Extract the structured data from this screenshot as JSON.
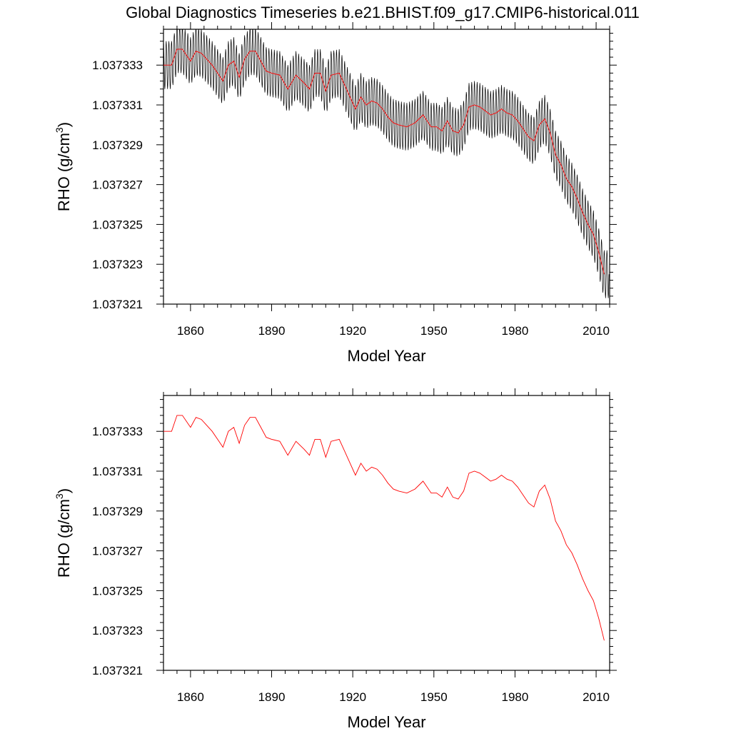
{
  "figure": {
    "title": "Global Diagnostics Timeseries b.e21.BHIST.f09_g17.CMIP6-historical.011"
  },
  "chart_data": [
    {
      "type": "line",
      "title": "Global Diagnostics Timeseries b.e21.BHIST.f09_g17.CMIP6-historical.011",
      "xlabel": "Model Year",
      "ylabel": "RHO (g/cm3)",
      "ylabel_main": "RHO (g/cm",
      "ylabel_sup": "3",
      "ylabel_close": ")",
      "xlim": [
        1850,
        2015
      ],
      "ylim": [
        1.037321,
        1.0373348
      ],
      "xticks": [
        1860,
        1890,
        1920,
        1950,
        1980,
        2010
      ],
      "yticks": [
        1.037321,
        1.037323,
        1.037325,
        1.037327,
        1.037329,
        1.037331,
        1.037333
      ],
      "ytick_labels": [
        "1.037321",
        "1.037323",
        "1.037325",
        "1.037327",
        "1.037329",
        "1.037331",
        "1.037333"
      ],
      "grid": false,
      "series": [
        {
          "role": "monthly",
          "color": "#000000",
          "seasonal_amplitude": 1.2e-06,
          "x": "same as annual series, sampled monthly"
        },
        {
          "role": "annual",
          "color": "#ff0000",
          "x": [
            1850,
            1853,
            1855,
            1857,
            1860,
            1862,
            1864,
            1866,
            1868,
            1870,
            1872,
            1874,
            1876,
            1878,
            1880,
            1882,
            1884,
            1886,
            1888,
            1890,
            1893,
            1896,
            1899,
            1902,
            1904,
            1906,
            1908,
            1910,
            1912,
            1915,
            1917,
            1919,
            1921,
            1923,
            1925,
            1927,
            1929,
            1931,
            1933,
            1935,
            1937,
            1940,
            1943,
            1946,
            1949,
            1951,
            1953,
            1955,
            1957,
            1959,
            1961,
            1963,
            1965,
            1967,
            1969,
            1971,
            1973,
            1975,
            1977,
            1979,
            1981,
            1983,
            1985,
            1987,
            1989,
            1991,
            1993,
            1995,
            1997,
            1999,
            2001,
            2003,
            2005,
            2007,
            2009,
            2011,
            2013
          ],
          "y": [
            1.037333,
            1.037333,
            1.0373338,
            1.0373338,
            1.0373332,
            1.0373337,
            1.0373336,
            1.0373333,
            1.037333,
            1.0373326,
            1.0373322,
            1.037333,
            1.0373332,
            1.0373324,
            1.0373333,
            1.0373337,
            1.0373337,
            1.0373332,
            1.0373327,
            1.0373326,
            1.0373325,
            1.0373318,
            1.0373325,
            1.0373321,
            1.0373318,
            1.0373326,
            1.0373326,
            1.0373317,
            1.0373325,
            1.0373326,
            1.037332,
            1.0373314,
            1.0373308,
            1.0373314,
            1.037331,
            1.0373312,
            1.0373311,
            1.0373308,
            1.0373304,
            1.0373301,
            1.03733,
            1.0373299,
            1.0373301,
            1.0373305,
            1.0373299,
            1.0373299,
            1.0373297,
            1.0373302,
            1.0373297,
            1.0373296,
            1.03733,
            1.0373309,
            1.037331,
            1.0373309,
            1.0373307,
            1.0373305,
            1.0373306,
            1.0373308,
            1.0373306,
            1.0373305,
            1.0373302,
            1.0373298,
            1.0373294,
            1.0373292,
            1.03733,
            1.0373303,
            1.0373296,
            1.0373285,
            1.037328,
            1.0373273,
            1.0373269,
            1.0373263,
            1.0373256,
            1.037325,
            1.0373245,
            1.0373236,
            1.0373225
          ]
        }
      ]
    },
    {
      "type": "line",
      "title": "",
      "xlabel": "Model Year",
      "ylabel": "RHO (g/cm3)",
      "ylabel_main": "RHO (g/cm",
      "ylabel_sup": "3",
      "ylabel_close": ")",
      "xlim": [
        1850,
        2015
      ],
      "ylim": [
        1.037321,
        1.0373348
      ],
      "xticks": [
        1860,
        1890,
        1920,
        1950,
        1980,
        2010
      ],
      "yticks": [
        1.037321,
        1.037323,
        1.037325,
        1.037327,
        1.037329,
        1.037331,
        1.037333
      ],
      "ytick_labels": [
        "1.037321",
        "1.037323",
        "1.037325",
        "1.037327",
        "1.037329",
        "1.037331",
        "1.037333"
      ],
      "grid": false,
      "series": [
        {
          "role": "annual",
          "color": "#ff0000",
          "x": [
            1850,
            1853,
            1855,
            1857,
            1860,
            1862,
            1864,
            1866,
            1868,
            1870,
            1872,
            1874,
            1876,
            1878,
            1880,
            1882,
            1884,
            1886,
            1888,
            1890,
            1893,
            1896,
            1899,
            1902,
            1904,
            1906,
            1908,
            1910,
            1912,
            1915,
            1917,
            1919,
            1921,
            1923,
            1925,
            1927,
            1929,
            1931,
            1933,
            1935,
            1937,
            1940,
            1943,
            1946,
            1949,
            1951,
            1953,
            1955,
            1957,
            1959,
            1961,
            1963,
            1965,
            1967,
            1969,
            1971,
            1973,
            1975,
            1977,
            1979,
            1981,
            1983,
            1985,
            1987,
            1989,
            1991,
            1993,
            1995,
            1997,
            1999,
            2001,
            2003,
            2005,
            2007,
            2009,
            2011,
            2013
          ],
          "y": [
            1.037333,
            1.037333,
            1.0373338,
            1.0373338,
            1.0373332,
            1.0373337,
            1.0373336,
            1.0373333,
            1.037333,
            1.0373326,
            1.0373322,
            1.037333,
            1.0373332,
            1.0373324,
            1.0373333,
            1.0373337,
            1.0373337,
            1.0373332,
            1.0373327,
            1.0373326,
            1.0373325,
            1.0373318,
            1.0373325,
            1.0373321,
            1.0373318,
            1.0373326,
            1.0373326,
            1.0373317,
            1.0373325,
            1.0373326,
            1.037332,
            1.0373314,
            1.0373308,
            1.0373314,
            1.037331,
            1.0373312,
            1.0373311,
            1.0373308,
            1.0373304,
            1.0373301,
            1.03733,
            1.0373299,
            1.0373301,
            1.0373305,
            1.0373299,
            1.0373299,
            1.0373297,
            1.0373302,
            1.0373297,
            1.0373296,
            1.03733,
            1.0373309,
            1.037331,
            1.0373309,
            1.0373307,
            1.0373305,
            1.0373306,
            1.0373308,
            1.0373306,
            1.0373305,
            1.0373302,
            1.0373298,
            1.0373294,
            1.0373292,
            1.03733,
            1.0373303,
            1.0373296,
            1.0373285,
            1.037328,
            1.0373273,
            1.0373269,
            1.0373263,
            1.0373256,
            1.037325,
            1.0373245,
            1.0373236,
            1.0373225
          ]
        }
      ]
    }
  ]
}
